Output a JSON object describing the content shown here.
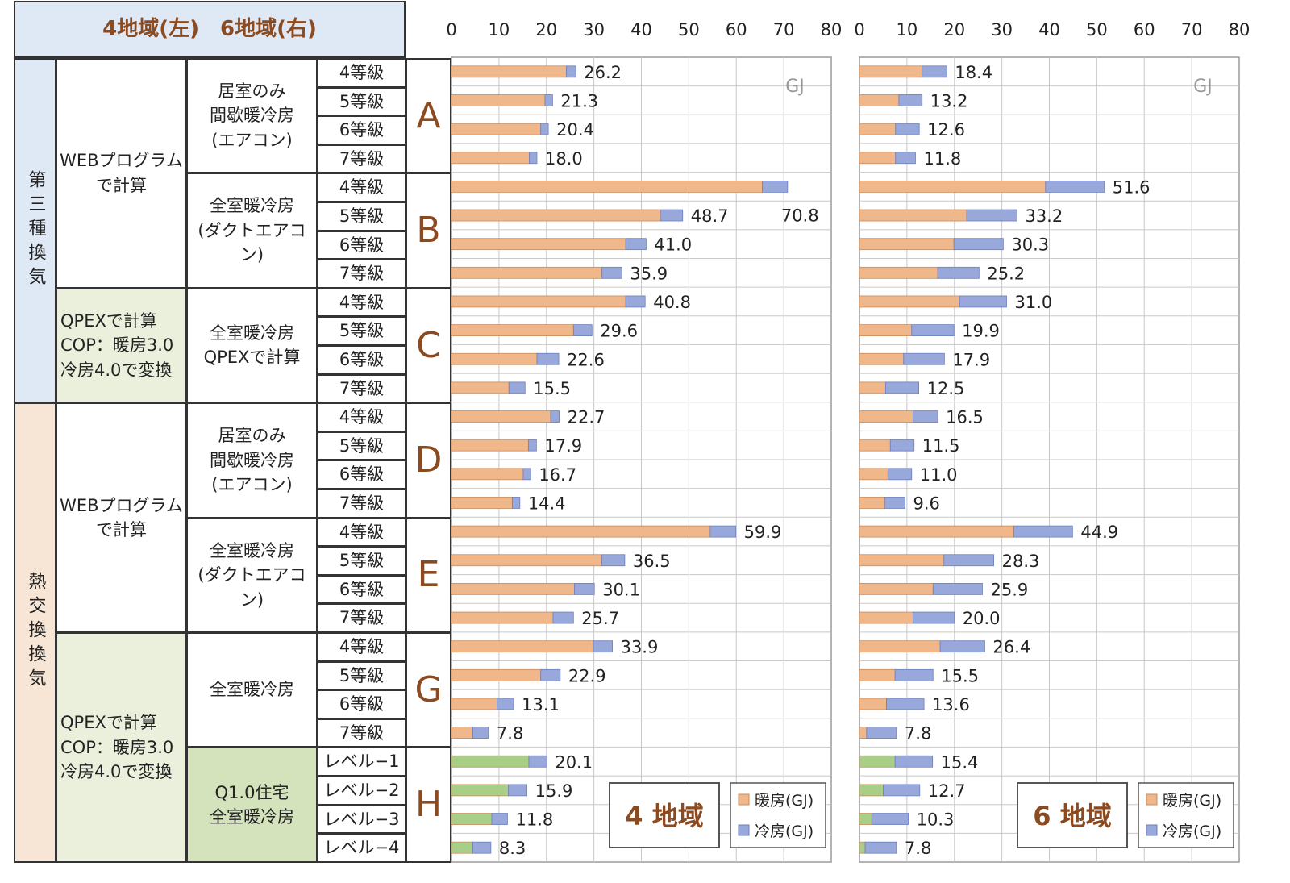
{
  "header": {
    "title": "4地域(左)　6地域(右)"
  },
  "ventilation": [
    {
      "label": "第三種換気",
      "bg": "#dfe9f5"
    },
    {
      "label": "熱交換換気",
      "bg": "#f7e6d6"
    }
  ],
  "methods": [
    {
      "label": "WEBプログラム\nで計算",
      "bg": "#ffffff"
    },
    {
      "label": "QPEXで計算\nCOP：暖房3.0\n冷房4.0で変換",
      "bg": "#eaf0dc"
    },
    {
      "label": "WEBプログラム\nで計算",
      "bg": "#ffffff"
    },
    {
      "label": "QPEXで計算\nCOP：暖房3.0\n冷房4.0で変換",
      "bg": "#eaf0dc"
    }
  ],
  "systems": [
    {
      "label": "居室のみ\n間歇暖冷房\n(エアコン)",
      "bg": "#ffffff"
    },
    {
      "label": "全室暖冷房\n(ダクトエアコン)",
      "bg": "#ffffff"
    },
    {
      "label": "全室暖冷房\nQPEXで計算",
      "bg": "#ffffff"
    },
    {
      "label": "居室のみ\n間歇暖冷房\n(エアコン)",
      "bg": "#ffffff"
    },
    {
      "label": "全室暖冷房\n(ダクトエアコン)",
      "bg": "#ffffff"
    },
    {
      "label": "全室暖冷房",
      "bg": "#ffffff"
    },
    {
      "label": "Q1.0住宅\n全室暖冷房",
      "bg": "#d4e3bc"
    }
  ],
  "groups": [
    "A",
    "B",
    "C",
    "D",
    "E",
    "G",
    "H"
  ],
  "grades": [
    "4等級",
    "5等級",
    "6等級",
    "7等級",
    "4等級",
    "5等級",
    "6等級",
    "7等級",
    "4等級",
    "5等級",
    "6等級",
    "7等級",
    "4等級",
    "5等級",
    "6等級",
    "7等級",
    "4等級",
    "5等級",
    "6等級",
    "7等級",
    "4等級",
    "5等級",
    "6等級",
    "7等級",
    "レベル−1",
    "レベル−2",
    "レベル−3",
    "レベル−4"
  ],
  "colors": {
    "heating": "#f0b78a",
    "cooling": "#98a8db",
    "heating_q1": "#a7cf88",
    "grid": "#c8c8c8",
    "accent": "#8b4a1f"
  },
  "chart_data": [
    {
      "type": "bar",
      "orientation": "horizontal",
      "stacked": true,
      "region_label": "4 地域",
      "unit": "GJ",
      "xlim": [
        0,
        80
      ],
      "xticks": [
        "0",
        "10",
        "20",
        "30",
        "40",
        "50",
        "60",
        "70",
        "80"
      ],
      "legend": [
        "暖房(GJ)",
        "冷房(GJ)"
      ],
      "legend_position": "bottom-right",
      "grid": true,
      "totals": [
        "26.2",
        "21.3",
        "20.4",
        "18.0",
        "70.8",
        "48.7",
        "41.0",
        "35.9",
        "40.8",
        "29.6",
        "22.6",
        "15.5",
        "22.7",
        "17.9",
        "16.7",
        "14.4",
        "59.9",
        "36.5",
        "30.1",
        "25.7",
        "33.9",
        "22.9",
        "13.1",
        "7.8",
        "20.1",
        "15.9",
        "11.8",
        "8.3"
      ],
      "heating": [
        24.2,
        19.7,
        18.8,
        16.4,
        65.5,
        44.0,
        36.7,
        31.7,
        36.7,
        25.7,
        18.0,
        12.1,
        20.9,
        16.2,
        15.1,
        12.8,
        54.5,
        31.7,
        25.9,
        21.4,
        29.9,
        18.8,
        9.6,
        4.5,
        16.3,
        12.0,
        8.5,
        4.5
      ]
    },
    {
      "type": "bar",
      "orientation": "horizontal",
      "stacked": true,
      "region_label": "6 地域",
      "unit": "GJ",
      "xlim": [
        0,
        80
      ],
      "xticks": [
        "0",
        "10",
        "20",
        "30",
        "40",
        "50",
        "60",
        "70",
        "80"
      ],
      "legend": [
        "暖房(GJ)",
        "冷房(GJ)"
      ],
      "legend_position": "bottom-right",
      "grid": true,
      "totals": [
        "18.4",
        "13.2",
        "12.6",
        "11.8",
        "51.6",
        "33.2",
        "30.3",
        "25.2",
        "31.0",
        "19.9",
        "17.9",
        "12.5",
        "16.5",
        "11.5",
        "11.0",
        "9.6",
        "44.9",
        "28.3",
        "25.9",
        "20.0",
        "26.4",
        "15.5",
        "13.6",
        "7.8",
        "15.4",
        "12.7",
        "10.3",
        "7.8"
      ],
      "heating": [
        13.2,
        8.3,
        7.6,
        7.6,
        39.2,
        22.6,
        19.9,
        16.5,
        21.1,
        11.0,
        9.3,
        5.5,
        11.3,
        6.5,
        6.0,
        5.3,
        32.5,
        17.8,
        15.5,
        11.3,
        17.0,
        7.5,
        5.7,
        1.5,
        7.5,
        5.0,
        2.6,
        1.2
      ]
    }
  ]
}
